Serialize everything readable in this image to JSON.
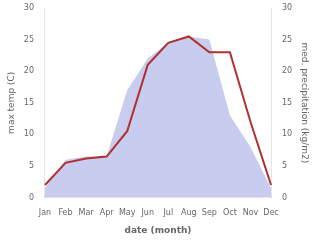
{
  "chart_data": {
    "type": "line",
    "categories": [
      "Jan",
      "Feb",
      "Mar",
      "Apr",
      "May",
      "Jun",
      "Jul",
      "Aug",
      "Sep",
      "Oct",
      "Nov",
      "Dec"
    ],
    "series": [
      {
        "type": "area",
        "color": "#c8ccee",
        "axis": "y2",
        "values": [
          1.5,
          6.0,
          6.5,
          6.5,
          17.0,
          22.0,
          24.5,
          25.5,
          25.0,
          13.0,
          8.0,
          1.5
        ]
      },
      {
        "type": "line",
        "color": "#b03030",
        "values": [
          2.0,
          5.5,
          6.2,
          6.5,
          10.5,
          21.0,
          24.5,
          25.5,
          23.0,
          23.0,
          12.0,
          2.0
        ]
      }
    ],
    "xlabel": "date (month)",
    "ylabel": "max temp (C)",
    "y2label": "med. precipitation (kg/m2)",
    "ylim": [
      0,
      30
    ],
    "yticks": [
      0,
      5,
      10,
      15,
      20,
      25,
      30
    ],
    "y2lim": [
      0,
      30
    ],
    "y2ticks": [
      0,
      5,
      10,
      15,
      20,
      25,
      30
    ],
    "grid": false
  }
}
